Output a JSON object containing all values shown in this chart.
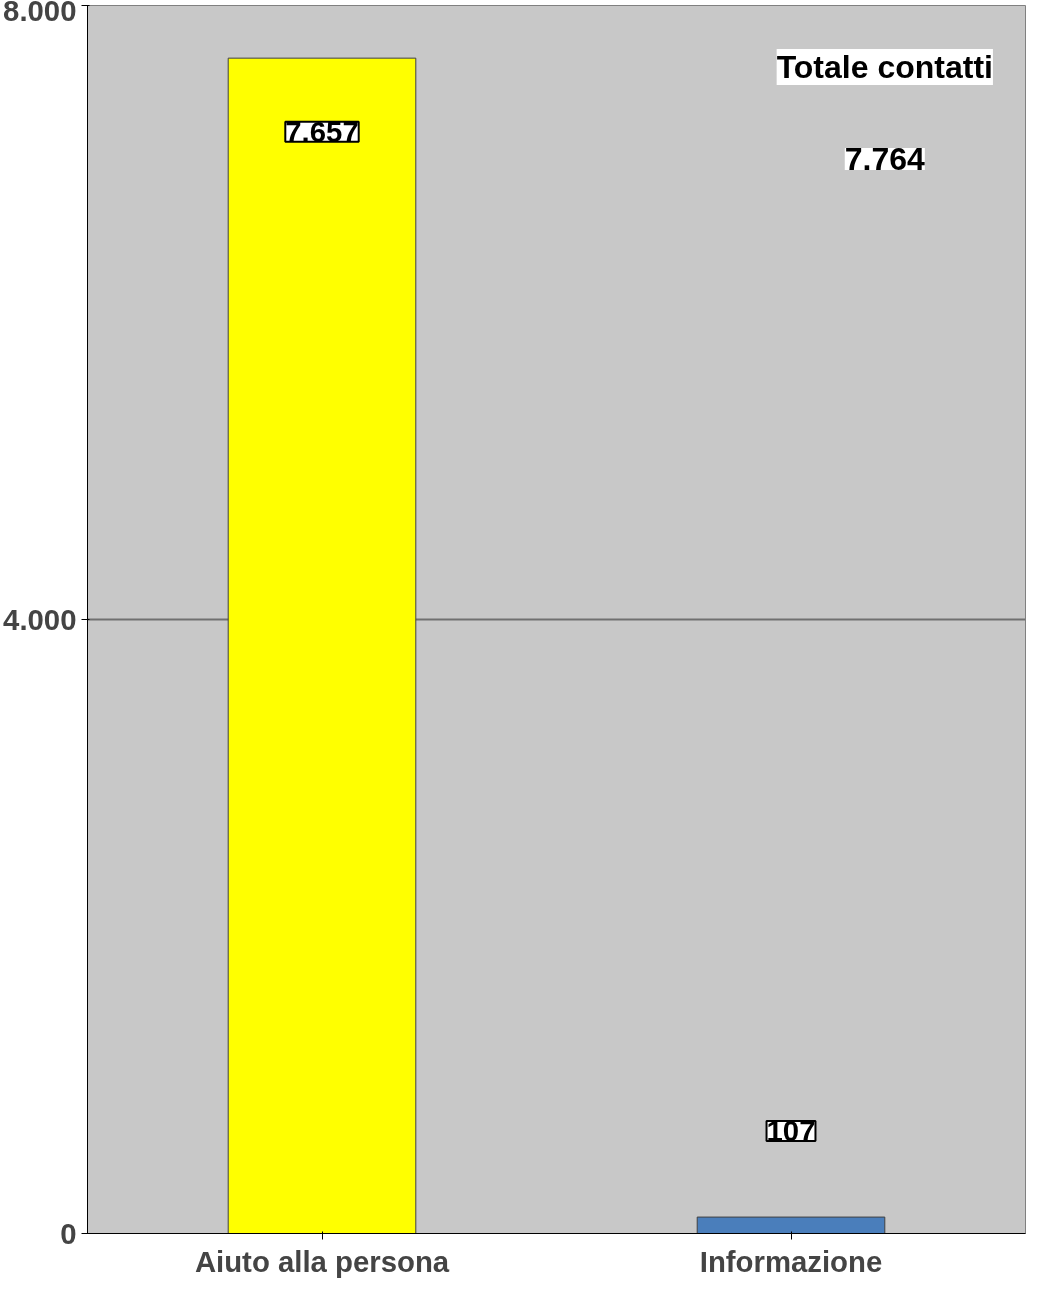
{
  "chart_data": {
    "type": "bar",
    "categories": [
      "Aiuto alla persona",
      "Informazione"
    ],
    "values": [
      7657,
      107
    ],
    "colors": [
      "#ffff00",
      "#4a7ebb"
    ],
    "value_labels": [
      "7.657",
      "107"
    ],
    "ylim": [
      0,
      8000
    ],
    "yticks": [
      {
        "value": 0,
        "label": "0"
      },
      {
        "value": 4000,
        "label": "4.000"
      },
      {
        "value": 8000,
        "label": "8.000"
      }
    ],
    "grid": "y",
    "annotations": [
      "Totale contatti",
      "7.764"
    ]
  }
}
